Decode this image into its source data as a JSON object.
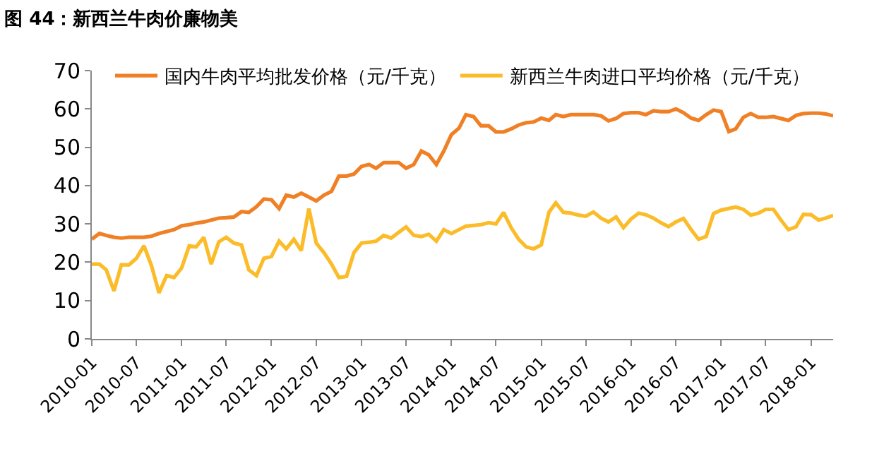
{
  "chart_data": {
    "type": "line",
    "title": "图 44：新西兰牛肉价廉物美",
    "x": [
      "2010-01",
      "2010-02",
      "2010-03",
      "2010-04",
      "2010-05",
      "2010-06",
      "2010-07",
      "2010-08",
      "2010-09",
      "2010-10",
      "2010-11",
      "2010-12",
      "2011-01",
      "2011-02",
      "2011-03",
      "2011-04",
      "2011-05",
      "2011-06",
      "2011-07",
      "2011-08",
      "2011-09",
      "2011-10",
      "2011-11",
      "2011-12",
      "2012-01",
      "2012-02",
      "2012-03",
      "2012-04",
      "2012-05",
      "2012-06",
      "2012-07",
      "2012-08",
      "2012-09",
      "2012-10",
      "2012-11",
      "2012-12",
      "2013-01",
      "2013-02",
      "2013-03",
      "2013-04",
      "2013-05",
      "2013-06",
      "2013-07",
      "2013-08",
      "2013-09",
      "2013-10",
      "2013-11",
      "2013-12",
      "2014-01",
      "2014-02",
      "2014-03",
      "2014-04",
      "2014-05",
      "2014-06",
      "2014-07",
      "2014-08",
      "2014-09",
      "2014-10",
      "2014-11",
      "2014-12",
      "2015-01",
      "2015-02",
      "2015-03",
      "2015-04",
      "2015-05",
      "2015-06",
      "2015-07",
      "2015-08",
      "2015-09",
      "2015-10",
      "2015-11",
      "2015-12",
      "2016-01",
      "2016-02",
      "2016-03",
      "2016-04",
      "2016-05",
      "2016-06",
      "2016-07",
      "2016-08",
      "2016-09",
      "2016-10",
      "2016-11",
      "2016-12",
      "2017-01",
      "2017-02",
      "2017-03",
      "2017-04",
      "2017-05",
      "2017-06",
      "2017-07",
      "2017-08",
      "2017-09",
      "2017-10",
      "2017-11",
      "2017-12",
      "2018-01",
      "2018-02",
      "2018-03",
      "2018-04"
    ],
    "series": [
      {
        "name": "国内牛肉平均批发价格（元/千克）",
        "color": "#f08025",
        "values": [
          26,
          27.5,
          27,
          26.5,
          26.3,
          26.5,
          26.5,
          26.5,
          26.8,
          27.5,
          28,
          28.5,
          29.5,
          29.8,
          30.2,
          30.5,
          31,
          31.5,
          31.6,
          31.8,
          33.2,
          33,
          34.5,
          36.5,
          36.3,
          34,
          37.5,
          37,
          38,
          37,
          36,
          37.5,
          38.5,
          42.5,
          42.5,
          43,
          45,
          45.5,
          44.5,
          46,
          46,
          46,
          44.5,
          45.5,
          49,
          48,
          45.5,
          49,
          53.3,
          55,
          58.5,
          58,
          55.6,
          55.6,
          54,
          54,
          54.8,
          55.8,
          56.4,
          56.6,
          57.6,
          57,
          58.5,
          58,
          58.5,
          58.5,
          58.5,
          58.5,
          58.2,
          56.9,
          57.5,
          58.8,
          59,
          59,
          58.5,
          59.5,
          59.3,
          59.3,
          60,
          59,
          57.6,
          57,
          58.5,
          59.7,
          59.3,
          54.1,
          54.8,
          57.8,
          58.8,
          57.8,
          57.8,
          58,
          57.5,
          57,
          58.3,
          58.8,
          58.9,
          58.9,
          58.7,
          58.2
        ]
      },
      {
        "name": "新西兰牛肉进口平均价格（元/千克）",
        "color": "#fbbc2a",
        "values": [
          19.5,
          19.5,
          18,
          12.5,
          19.3,
          19.3,
          21,
          24.3,
          19,
          12,
          16.5,
          16,
          18.5,
          24.3,
          24,
          26.5,
          19.5,
          25.3,
          26.5,
          25,
          24.5,
          18,
          16.5,
          21,
          21.5,
          25.5,
          23.5,
          26,
          23,
          34,
          25,
          22.5,
          19.5,
          16,
          16.3,
          22.5,
          25,
          25.2,
          25.5,
          27,
          26.3,
          27.8,
          29.2,
          27,
          26.7,
          27.3,
          25.5,
          28.5,
          27.5,
          28.5,
          29.4,
          29.6,
          29.8,
          30.3,
          30,
          33,
          29,
          26,
          24,
          23.5,
          24.5,
          33,
          35.5,
          33,
          32.8,
          32.3,
          32,
          33.1,
          31.5,
          30.5,
          31.8,
          29,
          31.3,
          32.8,
          32.4,
          31.5,
          30.3,
          29.3,
          30.5,
          31.4,
          28.5,
          26,
          26.7,
          32.7,
          33.6,
          34,
          34.4,
          33.8,
          32.3,
          32.8,
          33.8,
          33.8,
          31,
          28.5,
          29.2,
          32.5,
          32.4,
          31,
          31.5,
          32.2
        ]
      }
    ],
    "xlim": [
      "2010-01",
      "2018-04"
    ],
    "xticks": [
      "2010-01",
      "2010-07",
      "2011-01",
      "2011-07",
      "2012-01",
      "2012-07",
      "2013-01",
      "2013-07",
      "2014-01",
      "2014-07",
      "2015-01",
      "2015-07",
      "2016-01",
      "2016-07",
      "2017-01",
      "2017-07",
      "2018-01"
    ],
    "ylim": [
      0,
      70
    ],
    "yticks": [
      0,
      10,
      20,
      30,
      40,
      50,
      60,
      70
    ],
    "legend": "top",
    "marker": "none",
    "line_style": "solid"
  }
}
